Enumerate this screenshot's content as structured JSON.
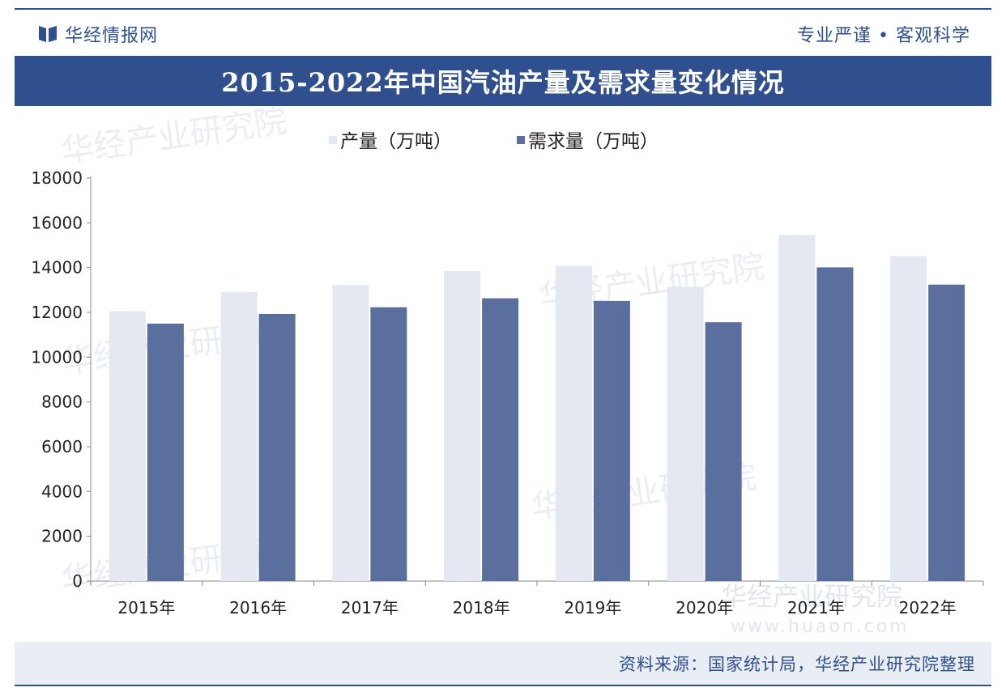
{
  "header": {
    "brand_name": "华经情报网",
    "slogan": "专业严谨 • 客观科学"
  },
  "title": "2015-2022年中国汽油产量及需求量变化情况",
  "footer": {
    "source": "资料来源：国家统计局，华经产业研究院整理"
  },
  "watermark": {
    "text": "华经产业研究院",
    "url": "www.huaon.com"
  },
  "colors": {
    "brand": "#2f4f8f",
    "production": "#e3e8f1",
    "demand": "#5a6f9e"
  },
  "chart_data": {
    "type": "bar",
    "title": "2015-2022年中国汽油产量及需求量变化情况",
    "categories": [
      "2015年",
      "2016年",
      "2017年",
      "2018年",
      "2019年",
      "2020年",
      "2021年",
      "2022年"
    ],
    "series": [
      {
        "name": "产量（万吨）",
        "values": [
          12050,
          12920,
          13220,
          13850,
          14080,
          13140,
          15460,
          14510
        ]
      },
      {
        "name": "需求量（万吨）",
        "values": [
          11500,
          11930,
          12230,
          12630,
          12510,
          11560,
          14010,
          13240
        ]
      }
    ],
    "ylim": [
      0,
      18000
    ],
    "yticks": [
      0,
      2000,
      4000,
      6000,
      8000,
      10000,
      12000,
      14000,
      16000,
      18000
    ],
    "xlabel": "",
    "ylabel": "",
    "grid": false,
    "legend": "top-left"
  }
}
